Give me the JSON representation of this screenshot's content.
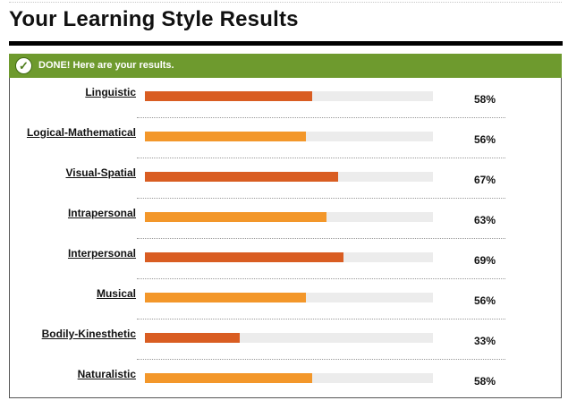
{
  "page": {
    "title": "Your Learning Style Results"
  },
  "banner": {
    "icon": "check-icon",
    "text": "DONE! Here are your results."
  },
  "colors": {
    "dark_bar": "#d95d22",
    "light_bar": "#f3972a",
    "banner": "#6e9a2e"
  },
  "results": [
    {
      "label": "Linguistic",
      "value": "58%",
      "percent": 58,
      "color": "#d95d22"
    },
    {
      "label": "Logical-Mathematical",
      "value": "56%",
      "percent": 56,
      "color": "#f3972a"
    },
    {
      "label": "Visual-Spatial",
      "value": "67%",
      "percent": 67,
      "color": "#d95d22"
    },
    {
      "label": "Intrapersonal",
      "value": "63%",
      "percent": 63,
      "color": "#f3972a"
    },
    {
      "label": "Interpersonal",
      "value": "69%",
      "percent": 69,
      "color": "#d95d22"
    },
    {
      "label": "Musical",
      "value": "56%",
      "percent": 56,
      "color": "#f3972a"
    },
    {
      "label": "Bodily-Kinesthetic",
      "value": "33%",
      "percent": 33,
      "color": "#d95d22"
    },
    {
      "label": "Naturalistic",
      "value": "58%",
      "percent": 58,
      "color": "#f3972a"
    }
  ]
}
